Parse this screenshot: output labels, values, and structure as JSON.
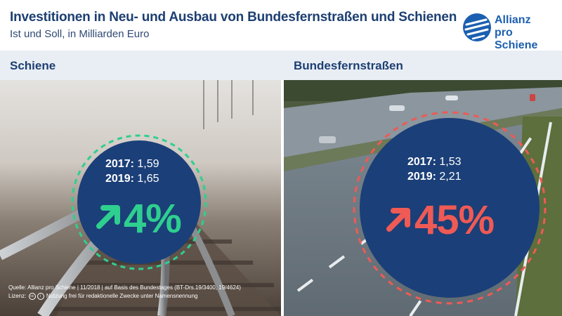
{
  "header": {
    "title": "Investitionen in Neu- und Ausbau von Bundesfernstraßen und Schienen",
    "subtitle": "Ist und Soll, in Milliarden Euro"
  },
  "logo": {
    "line1": "Allianz",
    "line2": "pro Schiene"
  },
  "colors": {
    "navy": "#1b3f78",
    "title": "#1d3f72",
    "green": "#2ecf8f",
    "red": "#ef5a55",
    "logo_blue": "#1b5fb0"
  },
  "chart_data": [
    {
      "type": "table",
      "title": "Schiene",
      "rows": [
        {
          "year": "2017:",
          "value": 1.59,
          "display": "1,59"
        },
        {
          "year": "2019:",
          "value": 1.65,
          "display": "1,65"
        }
      ],
      "change": "4%",
      "change_percent": 4,
      "trend": "up-right-arrow",
      "accent": "#2ecf8f"
    },
    {
      "type": "table",
      "title": "Bundesfernstraßen",
      "rows": [
        {
          "year": "2017:",
          "value": 1.53,
          "display": "1,53"
        },
        {
          "year": "2019:",
          "value": 2.21,
          "display": "2,21"
        }
      ],
      "change": "45%",
      "change_percent": 45,
      "trend": "up-right-arrow",
      "accent": "#ef5a55"
    }
  ],
  "source": {
    "line1": "Quelle: Allianz pro Schiene | 11/2018 | auf Basis des Bundestages (BT-Drs.19/3400, 19/4624)",
    "label2": "Lizenz:",
    "line2": "Nutzung frei für redaktionelle Zwecke unter Namensnennung"
  }
}
